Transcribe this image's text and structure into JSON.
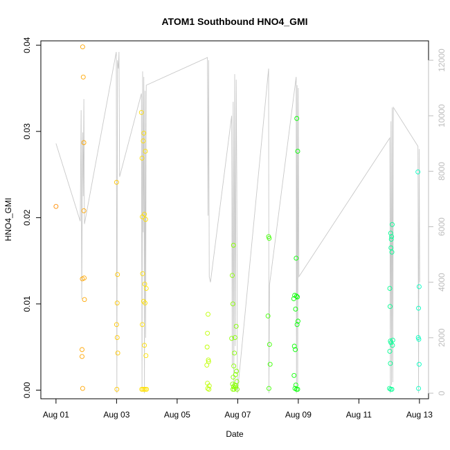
{
  "colors": {
    "background": "#ffffff",
    "axis": "#000000",
    "secondary_axis": "#bdbdbd",
    "secondary_line": "#c8c8c8",
    "series_gradient": [
      "#ff8c00",
      "#ffff00",
      "#00ff00",
      "#00ffc0"
    ]
  },
  "chart_data": {
    "type": "scatter",
    "title": "ATOM1 Southbound HNO4_GMI",
    "xlabel": "Date",
    "ylabel": "HNO4_GMI",
    "x_unit": "day of August 2016 (fractional)",
    "xlim": [
      0.5,
      13.3
    ],
    "ylim": [
      -0.001,
      0.0405
    ],
    "x_ticks": [
      1,
      3,
      5,
      7,
      9,
      11,
      13
    ],
    "x_tick_labels": [
      "Aug 01",
      "Aug 03",
      "Aug 05",
      "Aug 07",
      "Aug 09",
      "Aug 11",
      "Aug 13"
    ],
    "y_ticks": [
      0.0,
      0.01,
      0.02,
      0.03,
      0.04
    ],
    "y_tick_labels": [
      "0.00",
      "0.01",
      "0.02",
      "0.03",
      "0.04"
    ],
    "secondary_axis": {
      "side": "right",
      "ylim": [
        -200,
        12700
      ],
      "ticks": [
        0,
        2000,
        4000,
        6000,
        8000,
        10000,
        12000
      ],
      "tick_labels": [
        "0",
        "2000",
        "4000",
        "6000",
        "8000",
        "10000",
        "12000"
      ]
    },
    "grid": false,
    "legend": "none",
    "series": [
      {
        "values": [
          [
            1.0,
            0.0213
          ],
          [
            1.88,
            0.0398
          ],
          [
            1.9,
            0.0363
          ],
          [
            1.92,
            0.0287
          ],
          [
            1.92,
            0.0208
          ],
          [
            1.87,
            0.0129
          ],
          [
            1.93,
            0.013
          ],
          [
            1.94,
            0.0105
          ],
          [
            1.86,
            0.0047
          ],
          [
            1.86,
            0.0039
          ],
          [
            1.88,
            0.0002
          ],
          [
            3.0,
            0.0241
          ],
          [
            3.03,
            0.0134
          ],
          [
            3.02,
            0.0101
          ],
          [
            3.0,
            0.0076
          ],
          [
            3.02,
            0.0061
          ],
          [
            3.04,
            0.0043
          ],
          [
            3.01,
            0.0001
          ],
          [
            3.82,
            0.0322
          ],
          [
            3.9,
            0.0298
          ],
          [
            3.88,
            0.0289
          ],
          [
            3.84,
            0.0269
          ],
          [
            3.95,
            0.0277
          ],
          [
            3.85,
            0.0201
          ],
          [
            3.92,
            0.0204
          ],
          [
            3.96,
            0.0198
          ],
          [
            3.86,
            0.0135
          ],
          [
            3.93,
            0.0123
          ],
          [
            3.98,
            0.0118
          ],
          [
            3.89,
            0.0103
          ],
          [
            3.94,
            0.0101
          ],
          [
            3.85,
            0.0076
          ],
          [
            3.92,
            0.0052
          ],
          [
            3.97,
            0.004
          ],
          [
            3.83,
            0.0001
          ],
          [
            3.87,
            0.0001
          ],
          [
            3.91,
            0.0001
          ],
          [
            3.95,
            0.0001
          ],
          [
            3.99,
            0.0001
          ],
          [
            6.02,
            0.0088
          ],
          [
            6.0,
            0.0066
          ],
          [
            5.99,
            0.005
          ],
          [
            5.98,
            0.0029
          ],
          [
            6.04,
            0.0033
          ],
          [
            6.03,
            0.0035
          ],
          [
            6.0,
            0.0008
          ],
          [
            6.06,
            0.0005
          ],
          [
            6.01,
            0.0002
          ],
          [
            6.05,
            0.0001
          ],
          [
            6.82,
            0.0133
          ],
          [
            6.86,
            0.0168
          ],
          [
            6.84,
            0.01
          ],
          [
            6.95,
            0.0074
          ],
          [
            6.8,
            0.006
          ],
          [
            6.91,
            0.0061
          ],
          [
            6.89,
            0.0043
          ],
          [
            6.87,
            0.0028
          ],
          [
            6.96,
            0.0022
          ],
          [
            6.93,
            0.0018
          ],
          [
            6.85,
            0.0015
          ],
          [
            6.97,
            0.001
          ],
          [
            6.83,
            0.0007
          ],
          [
            6.9,
            0.0006
          ],
          [
            6.94,
            0.0005
          ],
          [
            6.86,
            0.0004
          ],
          [
            6.92,
            0.0003
          ],
          [
            6.88,
            0.0001
          ],
          [
            6.98,
            0.0001
          ],
          [
            6.84,
            0.0001
          ],
          [
            8.02,
            0.0178
          ],
          [
            8.04,
            0.0176
          ],
          [
            8.0,
            0.0086
          ],
          [
            8.05,
            0.0053
          ],
          [
            8.07,
            0.003
          ],
          [
            8.03,
            0.0002
          ],
          [
            8.95,
            0.0315
          ],
          [
            8.98,
            0.0277
          ],
          [
            8.93,
            0.0153
          ],
          [
            8.85,
            0.0106
          ],
          [
            8.88,
            0.011
          ],
          [
            8.94,
            0.0109
          ],
          [
            8.97,
            0.0108
          ],
          [
            8.91,
            0.0094
          ],
          [
            8.99,
            0.008
          ],
          [
            8.96,
            0.0076
          ],
          [
            8.87,
            0.0051
          ],
          [
            8.9,
            0.0047
          ],
          [
            8.86,
            0.0017
          ],
          [
            8.92,
            0.0006
          ],
          [
            8.89,
            0.0002
          ],
          [
            8.94,
            0.0001
          ],
          [
            8.98,
            0.0001
          ],
          [
            12.1,
            0.0192
          ],
          [
            12.05,
            0.0182
          ],
          [
            12.08,
            0.0178
          ],
          [
            12.07,
            0.0175
          ],
          [
            12.06,
            0.0165
          ],
          [
            12.09,
            0.016
          ],
          [
            12.02,
            0.0118
          ],
          [
            12.03,
            0.0097
          ],
          [
            12.04,
            0.0057
          ],
          [
            12.06,
            0.0055
          ],
          [
            12.12,
            0.0058
          ],
          [
            12.11,
            0.0052
          ],
          [
            12.02,
            0.0045
          ],
          [
            12.04,
            0.0031
          ],
          [
            12.01,
            0.0002
          ],
          [
            12.05,
            0.0001
          ],
          [
            12.09,
            0.0001
          ],
          [
            12.95,
            0.0253
          ],
          [
            12.99,
            0.012
          ],
          [
            12.97,
            0.0095
          ],
          [
            12.96,
            0.0061
          ],
          [
            12.98,
            0.0059
          ],
          [
            12.99,
            0.003
          ],
          [
            12.97,
            0.0002
          ]
        ]
      },
      {
        "axis": "secondary",
        "values": [
          [
            1.0,
            9000
          ],
          [
            1.8,
            6200
          ],
          [
            1.83,
            10200
          ],
          [
            1.85,
            3400
          ],
          [
            1.88,
            9400
          ],
          [
            1.9,
            7100
          ],
          [
            1.92,
            10600
          ],
          [
            1.94,
            6100
          ],
          [
            2.99,
            12300
          ],
          [
            3.01,
            0
          ],
          [
            3.03,
            12000
          ],
          [
            3.06,
            11700
          ],
          [
            3.08,
            12300
          ],
          [
            3.1,
            7800
          ],
          [
            3.82,
            10800
          ],
          [
            3.84,
            200
          ],
          [
            3.86,
            11600
          ],
          [
            3.88,
            5800
          ],
          [
            3.9,
            11400
          ],
          [
            3.92,
            0
          ],
          [
            3.94,
            10900
          ],
          [
            3.96,
            2000
          ],
          [
            3.98,
            11100
          ],
          [
            6.0,
            12100
          ],
          [
            6.02,
            6400
          ],
          [
            6.04,
            12000
          ],
          [
            6.06,
            4200
          ],
          [
            6.1,
            4000
          ],
          [
            6.8,
            10000
          ],
          [
            6.82,
            1000
          ],
          [
            6.85,
            10500
          ],
          [
            6.87,
            200
          ],
          [
            6.9,
            11500
          ],
          [
            6.92,
            1700
          ],
          [
            6.95,
            11300
          ],
          [
            6.97,
            7600
          ],
          [
            6.99,
            0
          ],
          [
            8.02,
            11700
          ],
          [
            8.03,
            0
          ],
          [
            8.05,
            3900
          ],
          [
            8.93,
            11400
          ],
          [
            8.94,
            0
          ],
          [
            8.96,
            11100
          ],
          [
            8.98,
            200
          ],
          [
            9.0,
            11000
          ],
          [
            9.02,
            4200
          ],
          [
            12.02,
            9200
          ],
          [
            12.04,
            0
          ],
          [
            12.06,
            9800
          ],
          [
            12.08,
            300
          ],
          [
            12.1,
            10300
          ],
          [
            12.12,
            400
          ],
          [
            12.14,
            10300
          ],
          [
            12.95,
            8900
          ],
          [
            12.97,
            0
          ],
          [
            12.99,
            8800
          ],
          [
            13.01,
            4000
          ]
        ]
      }
    ]
  }
}
